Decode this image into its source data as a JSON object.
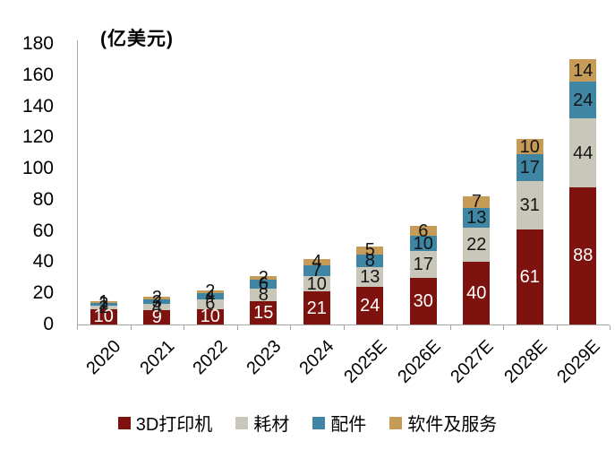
{
  "chart_data": {
    "type": "bar",
    "stacked": true,
    "title": "(亿美元)",
    "categories": [
      "2020",
      "2021",
      "2022",
      "2023",
      "2024",
      "2025E",
      "2026E",
      "2027E",
      "2028E",
      "2029E"
    ],
    "series": [
      {
        "name": "3D打印机",
        "color": "#7E120E",
        "label_color": "#FFFFFF",
        "values": [
          10,
          9,
          10,
          15,
          21,
          24,
          30,
          40,
          61,
          88
        ]
      },
      {
        "name": "耗材",
        "color": "#C9C7BA",
        "label_color": "#141414",
        "values": [
          2,
          4,
          6,
          8,
          10,
          13,
          17,
          22,
          31,
          44
        ]
      },
      {
        "name": "配件",
        "color": "#3E86A4",
        "label_color": "#141414",
        "values": [
          2,
          3,
          4,
          6,
          7,
          8,
          10,
          13,
          17,
          24
        ]
      },
      {
        "name": "软件及服务",
        "color": "#C59B57",
        "label_color": "#141414",
        "values": [
          1,
          2,
          2,
          2,
          4,
          5,
          6,
          7,
          10,
          14
        ]
      }
    ],
    "ylim": [
      0,
      180
    ],
    "ytick_step": 20,
    "yticks": [
      "0",
      "20",
      "40",
      "60",
      "80",
      "100",
      "120",
      "140",
      "160",
      "180"
    ],
    "grid": false,
    "legend_position": "bottom",
    "axis_color": "#A6A6A6",
    "text_color": "#000000"
  }
}
